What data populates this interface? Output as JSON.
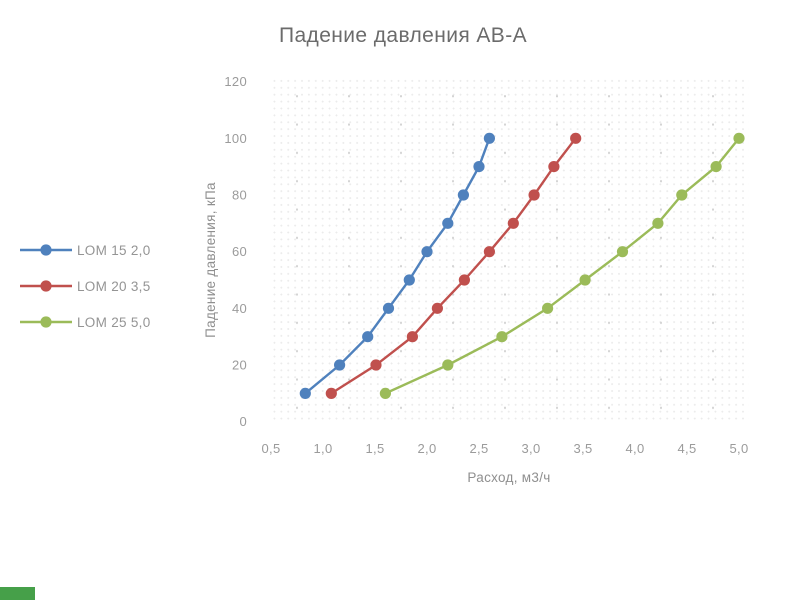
{
  "chart_data": {
    "type": "line",
    "title": "Падение давления АВ-А",
    "xlabel": "Расход, м3/ч",
    "ylabel": "Падение давления, кПа",
    "xlim": [
      0.5,
      5.0
    ],
    "ylim": [
      0,
      120
    ],
    "grid": "dotted",
    "legend_position": "left",
    "x_ticks": [
      0.5,
      1.0,
      1.5,
      2.0,
      2.5,
      3.0,
      3.5,
      4.0,
      4.5,
      5.0
    ],
    "x_tick_labels": [
      "0,5",
      "1,0",
      "1,5",
      "2,0",
      "2,5",
      "3,0",
      "3,5",
      "4,0",
      "4,5",
      "5,0"
    ],
    "y_ticks": [
      0,
      20,
      40,
      60,
      80,
      100,
      120
    ],
    "y_tick_labels": [
      "0",
      "20",
      "40",
      "60",
      "80",
      "100",
      "120"
    ],
    "pressure_kpa": [
      10,
      20,
      30,
      40,
      50,
      60,
      70,
      80,
      90,
      100
    ],
    "series": [
      {
        "name": "LOM 15 2,0",
        "color": "#4F81BD",
        "flow_m3h": [
          0.83,
          1.16,
          1.43,
          1.63,
          1.83,
          2.0,
          2.2,
          2.35,
          2.5,
          2.6
        ]
      },
      {
        "name": "LOM 20 3,5",
        "color": "#C0504D",
        "flow_m3h": [
          1.08,
          1.51,
          1.86,
          2.1,
          2.36,
          2.6,
          2.83,
          3.03,
          3.22,
          3.43
        ]
      },
      {
        "name": "LOM 25 5,0",
        "color": "#9BBB59",
        "flow_m3h": [
          1.6,
          2.2,
          2.72,
          3.16,
          3.52,
          3.88,
          4.22,
          4.45,
          4.78,
          5.0
        ]
      }
    ]
  },
  "accents": {
    "corner_green": "#46a049"
  }
}
